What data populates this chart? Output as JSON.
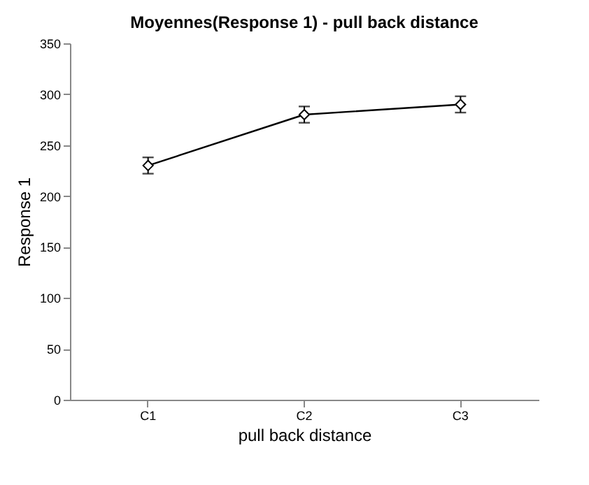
{
  "chart_data": {
    "type": "line",
    "title": "Moyennes(Response 1) - pull back distance",
    "xlabel": "pull back distance",
    "ylabel": "Response 1",
    "categories": [
      "C1",
      "C2",
      "C3"
    ],
    "series": [
      {
        "color": "#000000",
        "values": [
          230,
          280,
          290
        ],
        "errors": [
          8,
          8,
          8
        ]
      }
    ],
    "ylim": [
      0,
      350
    ],
    "yticks": [
      0,
      50,
      100,
      150,
      200,
      250,
      300,
      350
    ],
    "grid": false,
    "marker": "diamond",
    "line_style": "solid"
  }
}
